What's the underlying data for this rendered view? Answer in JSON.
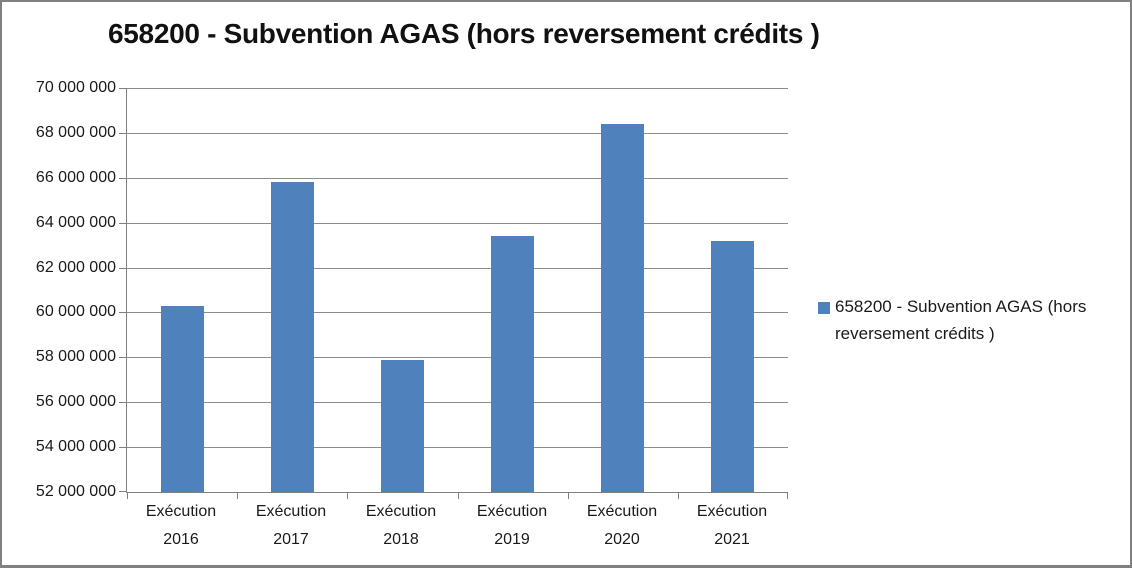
{
  "title": "658200 - Subvention AGAS (hors reversement crédits )",
  "legend": {
    "label": "658200 - Subvention AGAS (hors reversement crédits )",
    "swatch_color": "#4F81BD"
  },
  "colors": {
    "bar": "#4F81BD",
    "gridline": "#8c8c8c",
    "axis": "#7f7f7f",
    "frame_border": "#808080",
    "text": "#1a1a1a"
  },
  "chart_data": {
    "type": "bar",
    "title": "658200 - Subvention AGAS (hors reversement crédits )",
    "categories": [
      "Exécution 2016",
      "Exécution 2017",
      "Exécution 2018",
      "Exécution 2019",
      "Exécution 2020",
      "Exécution 2021"
    ],
    "series": [
      {
        "name": "658200 - Subvention AGAS (hors reversement crédits )",
        "values": [
          60300000,
          65800000,
          57900000,
          63400000,
          68400000,
          63200000
        ]
      }
    ],
    "xlabel": "",
    "ylabel": "",
    "ylim": [
      52000000,
      70000000
    ],
    "ytick_step": 2000000,
    "ytick_labels": [
      "70 000 000",
      "68 000 000",
      "66 000 000",
      "64 000 000",
      "62 000 000",
      "60 000 000",
      "58 000 000",
      "56 000 000",
      "54 000 000",
      "52 000 000"
    ],
    "grid": true,
    "legend_position": "right"
  }
}
